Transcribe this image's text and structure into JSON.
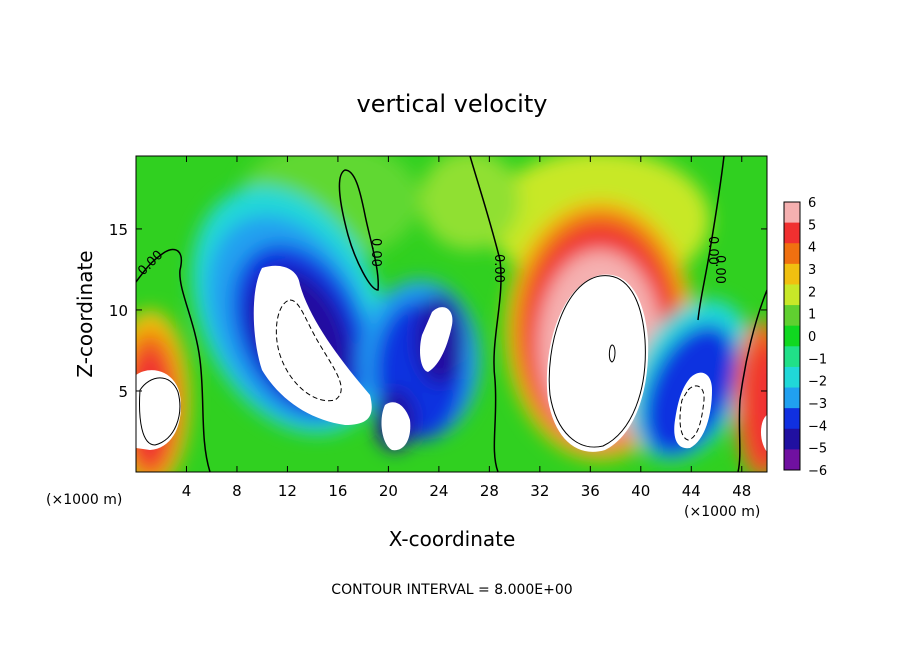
{
  "chart_data": {
    "type": "heatmap",
    "title": "vertical velocity",
    "xlabel": "X-coordinate",
    "ylabel": "Z-coordinate",
    "x_unit_left": "(×1000 m)",
    "x_unit_right": "(×1000 m)",
    "footer": "CONTOUR INTERVAL = 8.000E+00",
    "xlim": [
      0,
      50
    ],
    "ylim": [
      0,
      19.5
    ],
    "x_ticks": [
      4,
      8,
      12,
      16,
      20,
      24,
      28,
      32,
      36,
      40,
      44,
      48
    ],
    "x_tick_labels": [
      "4",
      "8",
      "12",
      "16",
      "20",
      "24",
      "28",
      "32",
      "36",
      "40",
      "44",
      "48"
    ],
    "y_ticks": [
      5,
      10,
      15
    ],
    "y_tick_labels": [
      "5",
      "10",
      "15"
    ],
    "colorbar": {
      "levels": [
        6,
        5,
        4,
        3,
        2,
        1,
        0,
        -1,
        -2,
        -3,
        -4,
        -5,
        -6
      ],
      "labels": [
        "6",
        "5",
        "4",
        "3",
        "2",
        "1",
        "0",
        "−1",
        "−2",
        "−3",
        "−4",
        "−5",
        "−6"
      ],
      "colors": [
        "#f5b0b0",
        "#f03030",
        "#f07010",
        "#f0c010",
        "#c8e828",
        "#60d030",
        "#10d820",
        "#20e088",
        "#20d8d8",
        "#20a0f0",
        "#1030e0",
        "#2010a0",
        "#7010a0"
      ]
    },
    "zero_contour_labels": [
      "0.00",
      "0.00",
      "0.00",
      "0.00",
      "0.00"
    ],
    "features": [
      {
        "x": 2.5,
        "z": 4.5,
        "sign": "up",
        "max": 8
      },
      {
        "x": 12,
        "z": 8.5,
        "sign": "down",
        "max": -8
      },
      {
        "x": 20,
        "z": 3,
        "sign": "down",
        "max": -8
      },
      {
        "x": 23.5,
        "z": 8,
        "sign": "down",
        "max": -8
      },
      {
        "x": 37,
        "z": 8,
        "sign": "up",
        "max": 12
      },
      {
        "x": 44,
        "z": 4,
        "sign": "down",
        "max": -8
      },
      {
        "x": 49.5,
        "z": 4.5,
        "sign": "up",
        "max": 6
      }
    ]
  }
}
